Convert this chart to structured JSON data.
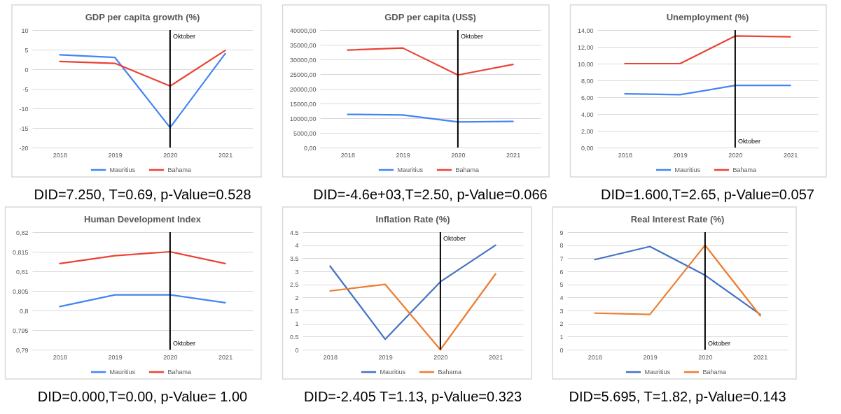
{
  "chart_data": [
    {
      "type": "line",
      "title": "GDP per capita growth (%)",
      "categories": [
        "2018",
        "2019",
        "2020",
        "2021"
      ],
      "series": [
        {
          "name": "Mauritius",
          "color": "#4285f4",
          "values": [
            3.7,
            3.0,
            -14.9,
            4.0
          ]
        },
        {
          "name": "Bahama",
          "color": "#ea4335",
          "values": [
            2.0,
            1.5,
            -4.3,
            4.8
          ]
        }
      ],
      "ylim": [
        -20,
        10
      ],
      "yticks": [
        -20,
        -15,
        -10,
        -5,
        0,
        5,
        10
      ],
      "grid": "y",
      "legend": "bottom",
      "ref_lines": [
        {
          "axis": "x",
          "value": "2020",
          "label": "Oktober",
          "color": "#000000"
        }
      ],
      "annotations": [
        "DID=7.250, T=0.69, p-Value=0.528"
      ]
    },
    {
      "type": "line",
      "title": "GDP per capita (US$)",
      "categories": [
        "2018",
        "2019",
        "2020",
        "2021"
      ],
      "series": [
        {
          "name": "Mauritius",
          "color": "#4285f4",
          "values": [
            11300,
            11100,
            8700,
            8900
          ]
        },
        {
          "name": "Bahama",
          "color": "#ea4335",
          "values": [
            33200,
            33900,
            24700,
            28300
          ]
        }
      ],
      "ylim": [
        0,
        40000
      ],
      "yticks": [
        {
          "value": 0,
          "label": "0,00"
        },
        {
          "value": 5000,
          "label": "5000,00"
        },
        {
          "value": 10000,
          "label": "10000,00"
        },
        {
          "value": 15000,
          "label": "15000,00"
        },
        {
          "value": 20000,
          "label": "20000,00"
        },
        {
          "value": 25000,
          "label": "25000,00"
        },
        {
          "value": 30000,
          "label": "30000,00"
        },
        {
          "value": 35000,
          "label": "35000,00"
        },
        {
          "value": 40000,
          "label": "40000,00"
        }
      ],
      "grid": "y",
      "legend": "bottom",
      "ref_lines": [
        {
          "axis": "x",
          "value": "2020",
          "label": "Oktober",
          "color": "#000000"
        }
      ],
      "annotations": [
        "DID=-4.6e+03,T=2.50, p-Value=0.066"
      ]
    },
    {
      "type": "line",
      "title": "Unemployment (%)",
      "categories": [
        "2018",
        "2019",
        "2020",
        "2021"
      ],
      "series": [
        {
          "name": "Mauritius",
          "color": "#4285f4",
          "values": [
            6.4,
            6.3,
            7.4,
            7.4
          ]
        },
        {
          "name": "Bahama",
          "color": "#ea4335",
          "values": [
            10.0,
            10.0,
            13.3,
            13.2
          ]
        }
      ],
      "ylim": [
        0,
        14
      ],
      "yticks": [
        {
          "value": 0,
          "label": "0,00"
        },
        {
          "value": 2,
          "label": "2,00"
        },
        {
          "value": 4,
          "label": "4,00"
        },
        {
          "value": 6,
          "label": "6,00"
        },
        {
          "value": 8,
          "label": "8,00"
        },
        {
          "value": 10,
          "label": "10,00"
        },
        {
          "value": 12,
          "label": "12,00"
        },
        {
          "value": 14,
          "label": "14,00"
        }
      ],
      "grid": "y",
      "legend": "bottom",
      "ref_lines": [
        {
          "axis": "x",
          "value": "2020",
          "label": "Oktober",
          "color": "#000000"
        }
      ],
      "annotations": [
        "DID=1.600,T=2.65, p-Value=0.057"
      ]
    },
    {
      "type": "line",
      "title": "Human Development Index",
      "categories": [
        "2018",
        "2019",
        "2020",
        "2021"
      ],
      "series": [
        {
          "name": "Mauritius",
          "color": "#4285f4",
          "values": [
            0.801,
            0.804,
            0.804,
            0.802
          ]
        },
        {
          "name": "Bahama",
          "color": "#ea4335",
          "values": [
            0.812,
            0.814,
            0.815,
            0.812
          ]
        }
      ],
      "ylim": [
        0.79,
        0.82
      ],
      "yticks": [
        {
          "value": 0.79,
          "label": "0,79"
        },
        {
          "value": 0.795,
          "label": "0,795"
        },
        {
          "value": 0.8,
          "label": "0,8"
        },
        {
          "value": 0.805,
          "label": "0,805"
        },
        {
          "value": 0.81,
          "label": "0,81"
        },
        {
          "value": 0.815,
          "label": "0,815"
        },
        {
          "value": 0.82,
          "label": "0,82"
        }
      ],
      "grid": "y",
      "legend": "bottom",
      "ref_lines": [
        {
          "axis": "x",
          "value": "2020",
          "label": "Oktober",
          "color": "#000000"
        }
      ],
      "annotations": [
        "DID=0.000,T=0.00, p-Value= 1.00"
      ]
    },
    {
      "type": "line",
      "title": "Inflation Rate (%)",
      "categories": [
        "2018",
        "2019",
        "2020",
        "2021"
      ],
      "series": [
        {
          "name": "Mauritius",
          "color": "#4472c4",
          "values": [
            3.2,
            0.4,
            2.6,
            4.0
          ]
        },
        {
          "name": "Bahama",
          "color": "#ed7d31",
          "values": [
            2.25,
            2.5,
            0.0,
            2.9
          ]
        }
      ],
      "ylim": [
        0,
        4.5
      ],
      "yticks": [
        0,
        0.5,
        1,
        1.5,
        2,
        2.5,
        3,
        3.5,
        4,
        4.5
      ],
      "grid": "y",
      "legend": "bottom",
      "ref_lines": [
        {
          "axis": "x",
          "value": "2020",
          "label": "Oktober",
          "color": "#000000"
        }
      ],
      "annotations": [
        "DID=-2.405 T=1.13, p-Value=0.323"
      ]
    },
    {
      "type": "line",
      "title": "Real Interest Rate (%)",
      "categories": [
        "2018",
        "2019",
        "2020",
        "2021"
      ],
      "series": [
        {
          "name": "Mauritius",
          "color": "#4472c4",
          "values": [
            6.9,
            7.9,
            5.7,
            2.7
          ]
        },
        {
          "name": "Bahama",
          "color": "#ed7d31",
          "values": [
            2.8,
            2.7,
            8.0,
            2.6
          ]
        }
      ],
      "ylim": [
        0,
        9
      ],
      "yticks": [
        0,
        1,
        2,
        3,
        4,
        5,
        6,
        7,
        8,
        9
      ],
      "grid": "y",
      "legend": "bottom",
      "ref_lines": [
        {
          "axis": "x",
          "value": "2020",
          "label": "Oktober",
          "color": "#000000"
        }
      ],
      "annotations": [
        "DID=5.695, T=1.82, p-Value=0.143"
      ]
    }
  ]
}
